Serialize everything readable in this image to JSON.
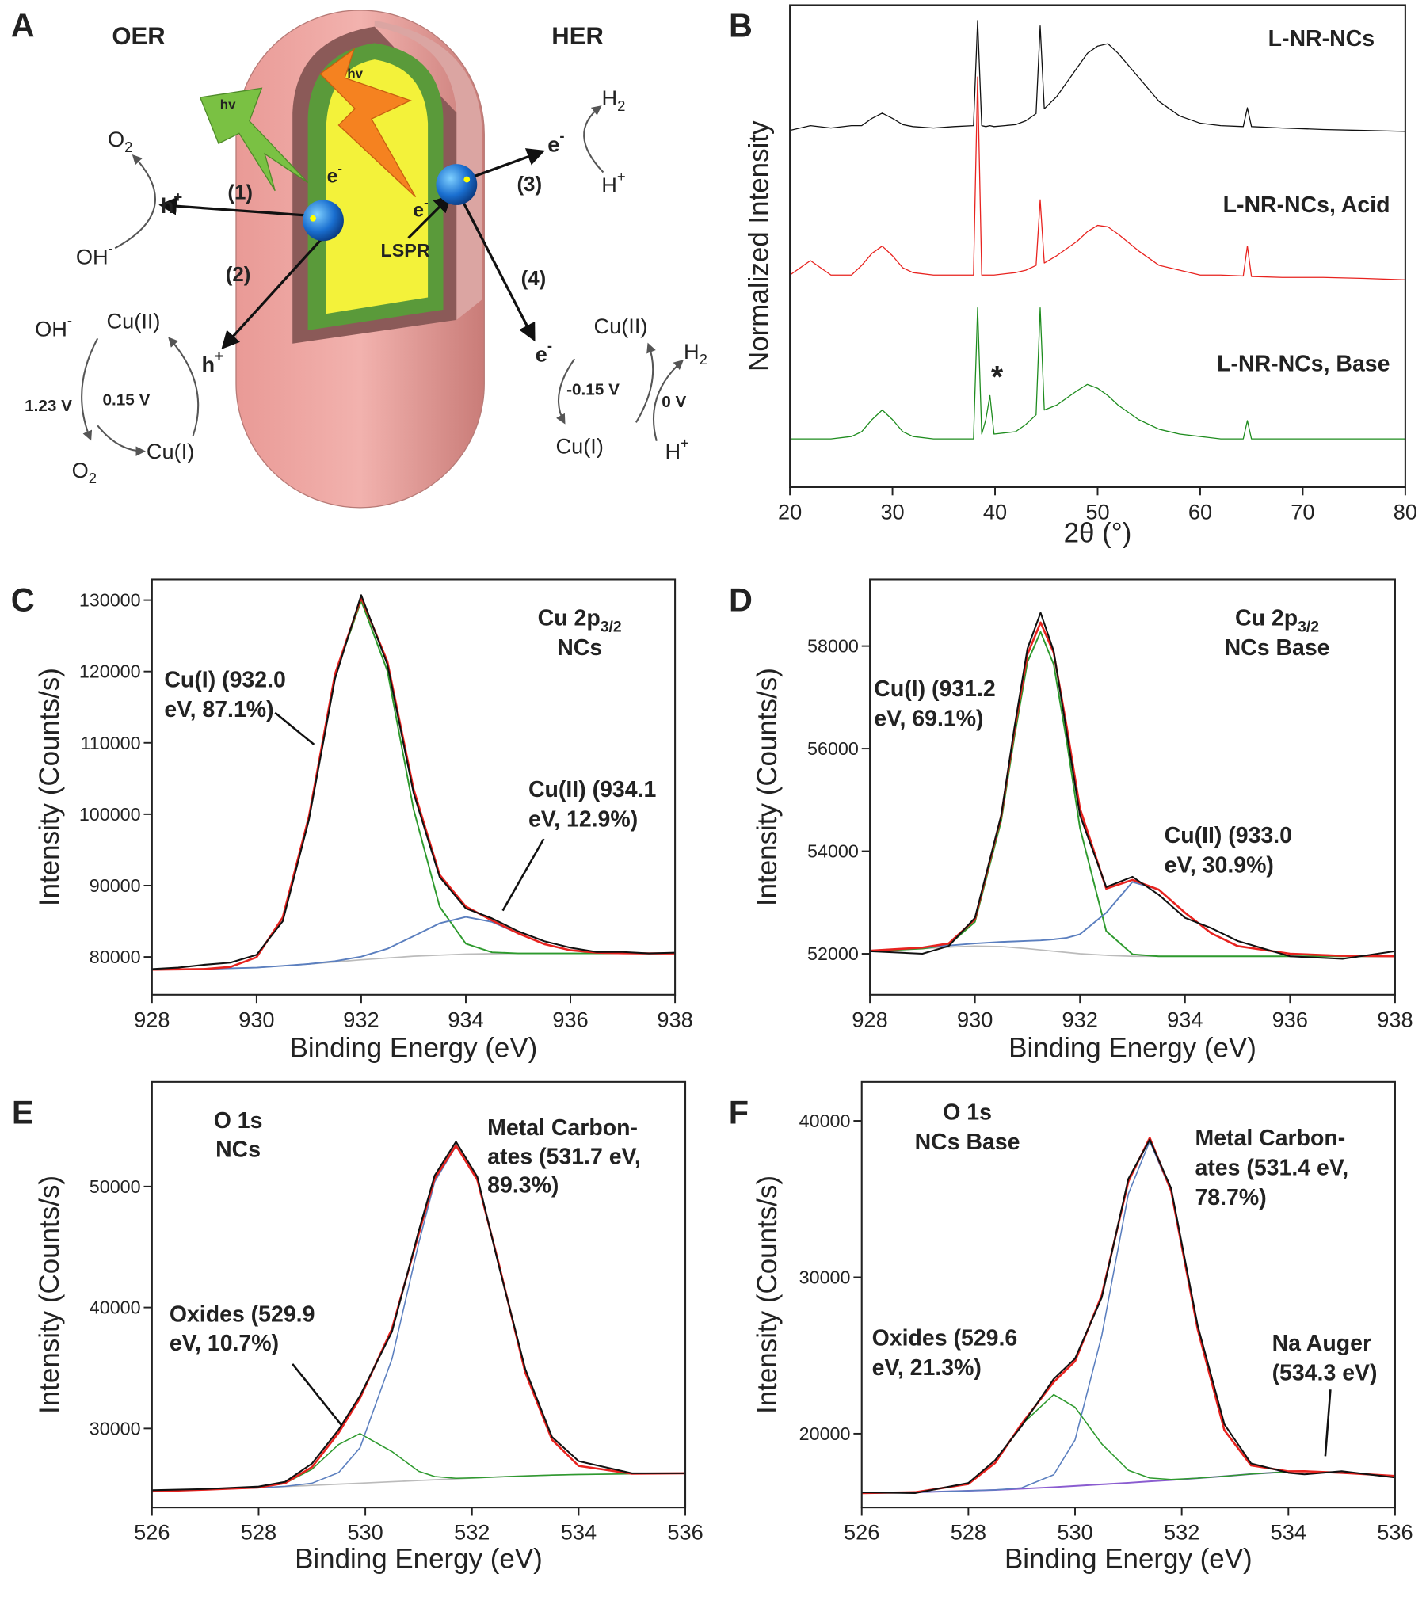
{
  "panel_labels": [
    "A",
    "B",
    "C",
    "D",
    "E",
    "F"
  ],
  "diagram": {
    "labels": [
      "OER",
      "HER",
      "hv",
      "hv",
      {
        "text": "O",
        "sub": "2"
      },
      {
        "text": "h",
        "sup": "+"
      },
      "(1)",
      {
        "text": "e",
        "sup": "-"
      },
      {
        "text": "OH",
        "sup": "-"
      },
      "(2)",
      {
        "text": "e",
        "sup": "-"
      },
      "LSPR",
      {
        "text": "e",
        "sup": "-"
      },
      "(3)",
      {
        "text": "H",
        "sub": "2"
      },
      {
        "text": "H",
        "sup": "+"
      },
      "(4)",
      "Cu(II)",
      {
        "text": "OH",
        "sup": "-"
      },
      {
        "text": "h",
        "sup": "+"
      },
      "1.23 V",
      "0.15 V",
      {
        "text": "O",
        "sub": "2"
      },
      "Cu(I)",
      {
        "text": "e",
        "sup": "-"
      },
      "Cu(II)",
      {
        "text": "H",
        "sub": "2"
      },
      "-0.15 V",
      "0 V",
      "Cu(I)",
      {
        "text": "H",
        "sup": "+"
      }
    ]
  },
  "chart_data": [
    {
      "type": "line",
      "xlabel": "2θ (°)",
      "ylabel": "Normalized Intensity",
      "x": [
        20,
        22,
        24,
        26,
        27,
        28,
        29,
        30,
        31,
        32,
        34,
        36,
        37.9,
        38.3,
        38.7,
        39.1,
        39.5,
        39.9,
        42,
        43,
        44,
        44.4,
        44.8,
        46,
        48,
        49,
        50,
        51,
        52,
        54,
        56,
        58,
        60,
        62,
        64.2,
        64.6,
        65,
        68,
        72,
        76,
        80
      ],
      "xlim": [
        20,
        80
      ],
      "xticks": [
        20,
        30,
        40,
        50,
        60,
        70,
        80
      ],
      "ylim": [
        0,
        1
      ],
      "series": [
        {
          "name": "L-NR-NCs",
          "color": "#111111",
          "values": [
            0.74,
            0.75,
            0.745,
            0.75,
            0.75,
            0.765,
            0.776,
            0.765,
            0.752,
            0.748,
            0.745,
            0.748,
            0.75,
            0.968,
            0.75,
            0.748,
            0.75,
            0.748,
            0.752,
            0.76,
            0.775,
            0.957,
            0.785,
            0.81,
            0.87,
            0.9,
            0.915,
            0.92,
            0.9,
            0.85,
            0.8,
            0.77,
            0.755,
            0.75,
            0.748,
            0.787,
            0.748,
            0.745,
            0.742,
            0.74,
            0.738
          ]
        },
        {
          "name": "L-NR-NCs, Acid",
          "color": "#e8231f",
          "values": [
            0.44,
            0.47,
            0.44,
            0.44,
            0.46,
            0.485,
            0.5,
            0.48,
            0.455,
            0.445,
            0.44,
            0.44,
            0.44,
            0.851,
            0.44,
            0.44,
            0.44,
            0.44,
            0.445,
            0.45,
            0.46,
            0.596,
            0.465,
            0.48,
            0.51,
            0.53,
            0.543,
            0.54,
            0.525,
            0.49,
            0.46,
            0.45,
            0.44,
            0.44,
            0.438,
            0.5,
            0.437,
            0.435,
            0.435,
            0.433,
            0.43
          ]
        },
        {
          "name": "L-NR-NCs, Base",
          "color": "#1e8c1e",
          "values": [
            0.1,
            0.1,
            0.1,
            0.105,
            0.115,
            0.14,
            0.16,
            0.14,
            0.115,
            0.105,
            0.1,
            0.1,
            0.1,
            0.372,
            0.11,
            0.14,
            0.19,
            0.11,
            0.115,
            0.13,
            0.15,
            0.372,
            0.16,
            0.17,
            0.2,
            0.213,
            0.205,
            0.19,
            0.17,
            0.14,
            0.12,
            0.11,
            0.105,
            0.1,
            0.1,
            0.138,
            0.1,
            0.1,
            0.1,
            0.1,
            0.1
          ]
        }
      ],
      "annotations": [
        {
          "lines": [
            "*"
          ],
          "color": "#1e8c1e"
        }
      ]
    },
    {
      "type": "line",
      "xlabel": "Binding Energy (eV)",
      "ylabel": "Intensity (Counts/s)",
      "x": [
        928,
        928.5,
        929,
        929.5,
        930,
        930.5,
        931,
        931.5,
        932,
        932.5,
        933,
        933.5,
        934,
        934.5,
        935,
        935.5,
        936,
        936.5,
        937,
        937.5,
        938
      ],
      "xlim": [
        928,
        938
      ],
      "xticks": [
        928,
        930,
        932,
        934,
        936,
        938
      ],
      "ylim": [
        74700,
        132900
      ],
      "yticks": [
        80000,
        90000,
        100000,
        110000,
        120000,
        130000
      ],
      "series": [
        {
          "color": "#bbbbbb",
          "values": [
            78200,
            78250,
            78300,
            78400,
            78500,
            78750,
            79000,
            79300,
            79600,
            79850,
            80100,
            80250,
            80400,
            80450,
            80500,
            80500,
            80500,
            80500,
            80500,
            80500,
            80500
          ]
        },
        {
          "color": "#2e9a2e",
          "values": [
            78200,
            78250,
            78300,
            78600,
            79960,
            85540,
            99620,
            119540,
            129900,
            120090,
            100720,
            87040,
            81860,
            80650,
            80500,
            80500,
            80500,
            80500,
            80500,
            80500,
            80500
          ]
        },
        {
          "color": "#5b7fbf",
          "values": [
            78200,
            78250,
            78300,
            78400,
            78500,
            78750,
            79020,
            79410,
            80040,
            81150,
            82910,
            84710,
            85600,
            84910,
            83310,
            81800,
            80940,
            80610,
            80520,
            80500,
            80500
          ]
        },
        {
          "color": "#e8231f",
          "values": [
            78200,
            78250,
            78300,
            78600,
            79960,
            85540,
            99640,
            119650,
            130340,
            121390,
            103530,
            91500,
            87060,
            85110,
            83310,
            81800,
            80940,
            80610,
            80520,
            80500,
            80500
          ]
        },
        {
          "color": "#111111",
          "values": [
            78300,
            78500,
            78900,
            79200,
            80300,
            85000,
            99200,
            119000,
            130700,
            121000,
            103000,
            91200,
            86800,
            85400,
            83600,
            82200,
            81300,
            80700,
            80700,
            80500,
            80600
          ]
        }
      ],
      "annotations": [
        {
          "lines": [
            {
              "text": "Cu 2p",
              "sub": "3/2"
            },
            "NCs"
          ],
          "color": "#222222"
        },
        {
          "lines": [
            "Cu(I) (932.0",
            "eV, 87.1%)"
          ],
          "color": "#3a7d2c"
        },
        {
          "lines": [
            "Cu(II) (934.1",
            "eV, 12.9%)"
          ],
          "color": "#4a72b8"
        }
      ]
    },
    {
      "type": "line",
      "xlabel": "Binding Energy (eV)",
      "ylabel": "Intensity (Counts/s)",
      "x": [
        928,
        929,
        929.5,
        930,
        930.5,
        930.75,
        931,
        931.25,
        931.5,
        931.75,
        932,
        932.5,
        933,
        933.5,
        934,
        934.5,
        935,
        936,
        937,
        938
      ],
      "xlim": [
        928,
        938
      ],
      "xticks": [
        928,
        930,
        932,
        934,
        936,
        938
      ],
      "ylim": [
        51200,
        59300
      ],
      "yticks": [
        52000,
        54000,
        56000,
        58000
      ],
      "series": [
        {
          "color": "#bbbbbb",
          "values": [
            52050,
            52100,
            52130,
            52150,
            52140,
            52120,
            52100,
            52075,
            52050,
            52025,
            52000,
            51970,
            51950,
            51950,
            51950,
            51950,
            51950,
            51950,
            51950,
            51950
          ]
        },
        {
          "color": "#2e9a2e",
          "values": [
            52050,
            52100,
            52170,
            52620,
            54590,
            56220,
            57690,
            58275,
            57640,
            56125,
            54450,
            52440,
            51990,
            51950,
            51950,
            51950,
            51950,
            51950,
            51950,
            51950
          ]
        },
        {
          "color": "#5b7fbf",
          "values": [
            52060,
            52120,
            52160,
            52200,
            52230,
            52240,
            52250,
            52260,
            52280,
            52310,
            52380,
            52800,
            53400,
            53250,
            52800,
            52400,
            52150,
            52000,
            51960,
            51950
          ]
        },
        {
          "color": "#e8231f",
          "values": [
            52060,
            52120,
            52200,
            52670,
            54680,
            56340,
            57840,
            58460,
            57870,
            56410,
            54830,
            53270,
            53440,
            53250,
            52800,
            52400,
            52150,
            52000,
            51960,
            51950
          ]
        },
        {
          "color": "#111111",
          "values": [
            52050,
            52000,
            52150,
            52700,
            54700,
            56400,
            57950,
            58650,
            57900,
            56300,
            54700,
            53300,
            53500,
            53150,
            52700,
            52500,
            52250,
            51950,
            51900,
            52050
          ]
        }
      ],
      "annotations": [
        {
          "lines": [
            {
              "text": "Cu 2p",
              "sub": "3/2"
            },
            "NCs Base"
          ],
          "color": "#222222"
        },
        {
          "lines": [
            "Cu(I) (931.2",
            "eV, 69.1%)"
          ],
          "color": "#3a7d2c"
        },
        {
          "lines": [
            "Cu(II) (933.0",
            "eV, 30.9%)"
          ],
          "color": "#4a72b8"
        }
      ]
    },
    {
      "type": "line",
      "xlabel": "Binding Energy (eV)",
      "ylabel": "Intensity (Counts/s)",
      "x": [
        526,
        527,
        528,
        528.5,
        529,
        529.5,
        529.9,
        530.5,
        531,
        531.3,
        531.7,
        532.1,
        532.5,
        533,
        533.5,
        534,
        535,
        536
      ],
      "xlim": [
        526,
        536
      ],
      "xticks": [
        526,
        528,
        530,
        532,
        534,
        536
      ],
      "ylim": [
        23470,
        58640
      ],
      "yticks": [
        30000,
        40000,
        50000
      ],
      "series": [
        {
          "color": "#bbbbbb",
          "values": [
            24800,
            24950,
            25100,
            25200,
            25300,
            25400,
            25480,
            25600,
            25700,
            25760,
            25840,
            25920,
            26000,
            26080,
            26150,
            26200,
            26250,
            26300
          ]
        },
        {
          "color": "#2e9a2e",
          "values": [
            24800,
            24950,
            25127,
            25470,
            26630,
            28680,
            29580,
            28090,
            26463,
            26030,
            25885,
            25925,
            26000,
            26080,
            26150,
            26200,
            26250,
            26300
          ]
        },
        {
          "color": "#5b7fbf",
          "values": [
            24800,
            24950,
            25100,
            25220,
            25480,
            26360,
            28400,
            35750,
            45290,
            50380,
            53340,
            50540,
            43660,
            34610,
            29070,
            26910,
            26265,
            26300
          ]
        },
        {
          "color": "#e8231f",
          "values": [
            24800,
            24950,
            25129,
            25493,
            26809,
            29642,
            32500,
            38240,
            46053,
            50650,
            53385,
            50545,
            43660,
            34610,
            29070,
            26907,
            26265,
            26300
          ]
        },
        {
          "color": "#111111",
          "values": [
            24900,
            25000,
            25200,
            25600,
            27100,
            29900,
            32700,
            38000,
            46300,
            50900,
            53700,
            50800,
            43500,
            34900,
            29300,
            27300,
            26300,
            26300
          ]
        }
      ],
      "annotations": [
        {
          "lines": [
            "O 1s",
            "NCs"
          ],
          "color": "#222222"
        },
        {
          "lines": [
            "Metal Carbon-",
            "ates (531.7 eV,",
            "89.3%)"
          ],
          "color": "#4a72b8"
        },
        {
          "lines": [
            "Oxides (529.9",
            "eV, 10.7%)"
          ],
          "color": "#3a7d2c"
        }
      ]
    },
    {
      "type": "line",
      "xlabel": "Binding Energy (eV)",
      "ylabel": "Intensity (Counts/s)",
      "x": [
        526,
        527,
        528,
        528.5,
        529,
        529.6,
        530,
        530.5,
        531,
        531.4,
        531.8,
        532.3,
        532.8,
        533.3,
        534,
        534.3,
        535,
        536
      ],
      "xlim": [
        526,
        536
      ],
      "xticks": [
        526,
        528,
        530,
        532,
        534,
        536
      ],
      "ylim": [
        15280,
        42490
      ],
      "yticks": [
        20000,
        30000,
        40000
      ],
      "series": [
        {
          "color": "#8a5cd0",
          "values": [
            16200,
            16250,
            16350,
            16400,
            16480,
            16580,
            16660,
            16760,
            16860,
            16950,
            17030,
            17150,
            17280,
            17420,
            17570,
            17600,
            17500,
            17300
          ]
        },
        {
          "color": "#2e9a2e",
          "values": [
            16200,
            16256,
            16785,
            18120,
            20580,
            22500,
            21690,
            19350,
            17660,
            17167,
            17073,
            17154,
            17280,
            17420,
            17570,
            17600,
            17500,
            17300
          ]
        },
        {
          "color": "#5b7fbf",
          "values": [
            16200,
            16250,
            16350,
            16404,
            16541,
            17376,
            19600,
            26260,
            35330,
            38700,
            35500,
            26650,
            20220,
            17970,
            17592,
            17600,
            17500,
            17300
          ]
        },
        {
          "color": "#e8231f",
          "values": [
            16200,
            16256,
            16785,
            18124,
            20641,
            23296,
            24630,
            28850,
            36130,
            38917,
            35543,
            26654,
            20220,
            17970,
            17592,
            17600,
            17500,
            17300
          ]
        },
        {
          "color": "#111111",
          "values": [
            16250,
            16200,
            16850,
            18300,
            20500,
            23500,
            24800,
            28700,
            36300,
            38800,
            35700,
            26900,
            20600,
            18100,
            17500,
            17400,
            17600,
            17200
          ]
        }
      ],
      "annotations": [
        {
          "lines": [
            "O 1s",
            "NCs Base"
          ],
          "color": "#222222"
        },
        {
          "lines": [
            "Metal Carbon-",
            "ates (531.4 eV,",
            "78.7%)"
          ],
          "color": "#4a72b8"
        },
        {
          "lines": [
            "Oxides (529.6",
            "eV, 21.3%)"
          ],
          "color": "#3a7d2c"
        },
        {
          "lines": [
            "Na Auger",
            "(534.3 eV)"
          ],
          "color": "#8a5cd0"
        }
      ]
    }
  ]
}
